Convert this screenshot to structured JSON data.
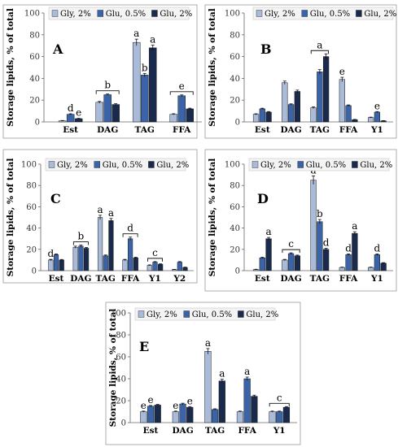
{
  "colors": {
    "gly": "#a9bbd9",
    "glu05": "#3b63a8",
    "glu2": "#1a2a4c"
  },
  "legend_labels": [
    "Gly, 2%",
    "Glu, 0.5%",
    "Glu, 2%"
  ],
  "ylabel": "Storage lipids, % of total",
  "chart_data": [
    {
      "type": "bar",
      "panel_label": "A",
      "categories": [
        "Est",
        "DAG",
        "TAG",
        "FFA"
      ],
      "series": [
        {
          "name": "Gly, 2%",
          "values": [
            1,
            18,
            73,
            7
          ],
          "errors": [
            0.3,
            0.8,
            3,
            0.5
          ]
        },
        {
          "name": "Glu, 0.5%",
          "values": [
            7,
            25,
            43,
            24
          ],
          "errors": [
            0.5,
            0.6,
            1.5,
            0.8
          ]
        },
        {
          "name": "Glu, 2%",
          "values": [
            3,
            16,
            68,
            12
          ],
          "errors": [
            0.3,
            0.7,
            2.5,
            0.6
          ]
        }
      ],
      "ylim": [
        0,
        100
      ],
      "yticks": [
        0,
        20,
        40,
        60,
        80,
        100
      ],
      "ylabel": "Storage lipids, % of total",
      "annotations": [
        {
          "text": "d",
          "category": "Est",
          "series": 1
        },
        {
          "text": "e",
          "category": "Est",
          "series": 2
        },
        {
          "text": "b",
          "category": "DAG",
          "bracket": true
        },
        {
          "text": "a",
          "category": "TAG",
          "series": 0
        },
        {
          "text": "b",
          "category": "TAG",
          "series": 1
        },
        {
          "text": "a",
          "category": "TAG",
          "series": 2
        },
        {
          "text": "e",
          "category": "FFA",
          "bracket": true
        }
      ]
    },
    {
      "type": "bar",
      "panel_label": "B",
      "categories": [
        "Est",
        "DAG",
        "TAG",
        "FFA",
        "Y1"
      ],
      "series": [
        {
          "name": "Gly, 2%",
          "values": [
            7,
            36,
            13,
            39,
            4
          ],
          "errors": [
            0.5,
            1.5,
            0.8,
            2,
            0.4
          ]
        },
        {
          "name": "Glu, 0.5%",
          "values": [
            12,
            16,
            46,
            15,
            9
          ],
          "errors": [
            0.6,
            0.6,
            2,
            0.6,
            0.5
          ]
        },
        {
          "name": "Glu, 2%",
          "values": [
            9,
            28,
            60,
            2,
            1
          ],
          "errors": [
            0.5,
            1.2,
            2.5,
            0.3,
            0.2
          ]
        }
      ],
      "ylim": [
        0,
        100
      ],
      "yticks": [
        0,
        20,
        40,
        60,
        80,
        100
      ],
      "ylabel": "Storage lipids, % of total",
      "annotations": [
        {
          "text": "a",
          "category": "TAG",
          "bracket": true
        },
        {
          "text": "e",
          "category": "FFA",
          "series": 0
        },
        {
          "text": "e",
          "category": "Y1",
          "series": 1
        }
      ]
    },
    {
      "type": "bar",
      "panel_label": "C",
      "categories": [
        "Est",
        "DAG",
        "TAG",
        "FFA",
        "Y1",
        "Y2"
      ],
      "series": [
        {
          "name": "Gly, 2%",
          "values": [
            10,
            22,
            50,
            10,
            5,
            1
          ],
          "errors": [
            0.6,
            1,
            2,
            0.6,
            0.4,
            0.2
          ]
        },
        {
          "name": "Glu, 0.5%",
          "values": [
            15,
            23,
            14,
            30,
            8,
            8
          ],
          "errors": [
            0.7,
            1,
            0.7,
            1.5,
            0.5,
            0.5
          ]
        },
        {
          "name": "Glu, 2%",
          "values": [
            10,
            21,
            47,
            12,
            6,
            3
          ],
          "errors": [
            0.5,
            0.8,
            2,
            0.6,
            0.4,
            0.3
          ]
        }
      ],
      "ylim": [
        0,
        100
      ],
      "yticks": [
        0,
        20,
        40,
        60,
        80,
        100
      ],
      "ylabel": "Storage lipids, % of total",
      "annotations": [
        {
          "text": "d",
          "category": "Est",
          "series": 0
        },
        {
          "text": "b",
          "category": "DAG",
          "bracket": true
        },
        {
          "text": "a",
          "category": "TAG",
          "series": 0
        },
        {
          "text": "a",
          "category": "TAG",
          "series": 2
        },
        {
          "text": "d",
          "category": "FFA",
          "bracket": true
        },
        {
          "text": "c",
          "category": "Y1",
          "bracket": true
        }
      ]
    },
    {
      "type": "bar",
      "panel_label": "D",
      "categories": [
        "Est",
        "DAG",
        "TAG",
        "FFA",
        "Y1"
      ],
      "series": [
        {
          "name": "Gly, 2%",
          "values": [
            1,
            10,
            85,
            3,
            3
          ],
          "errors": [
            0.3,
            0.6,
            4,
            0.3,
            0.3
          ]
        },
        {
          "name": "Glu, 0.5%",
          "values": [
            12,
            16,
            46,
            15,
            15
          ],
          "errors": [
            0.6,
            0.7,
            2,
            0.7,
            0.7
          ]
        },
        {
          "name": "Glu, 2%",
          "values": [
            30,
            14,
            20,
            35,
            7
          ],
          "errors": [
            1.2,
            0.6,
            1,
            1.5,
            0.5
          ]
        }
      ],
      "ylim": [
        0,
        100
      ],
      "yticks": [
        0,
        20,
        40,
        60,
        80,
        100
      ],
      "ylabel": "Storage lipids, % of total",
      "annotations": [
        {
          "text": "a",
          "category": "Est",
          "series": 2
        },
        {
          "text": "c",
          "category": "DAG",
          "bracket": true
        },
        {
          "text": "a",
          "category": "TAG",
          "series": 0
        },
        {
          "text": "b",
          "category": "TAG",
          "series": 1
        },
        {
          "text": "d",
          "category": "TAG",
          "series": 2
        },
        {
          "text": "d",
          "category": "FFA",
          "series": 1
        },
        {
          "text": "a",
          "category": "FFA",
          "series": 2
        },
        {
          "text": "d",
          "category": "Y1",
          "series": 1
        }
      ]
    },
    {
      "type": "bar",
      "panel_label": "E",
      "categories": [
        "Est",
        "DAG",
        "TAG",
        "FFA",
        "Y1"
      ],
      "series": [
        {
          "name": "Gly, 2%",
          "values": [
            10,
            10,
            65,
            10,
            10
          ],
          "errors": [
            0.5,
            0.5,
            2.5,
            0.5,
            0.5
          ]
        },
        {
          "name": "Glu, 0.5%",
          "values": [
            15,
            17,
            12,
            40,
            10
          ],
          "errors": [
            0.6,
            0.7,
            0.6,
            1.5,
            0.5
          ]
        },
        {
          "name": "Glu, 2%",
          "values": [
            16,
            14,
            38,
            24,
            14
          ],
          "errors": [
            0.6,
            0.6,
            1.5,
            1,
            0.6
          ]
        }
      ],
      "ylim": [
        0,
        100
      ],
      "yticks": [
        0,
        20,
        40,
        60,
        80,
        100
      ],
      "ylabel": "Storage lipids, % of total",
      "annotations": [
        {
          "text": "e",
          "category": "Est",
          "series": 0
        },
        {
          "text": "e",
          "category": "Est",
          "series": 1
        },
        {
          "text": "e",
          "category": "DAG",
          "series": 0
        },
        {
          "text": "e",
          "category": "DAG",
          "series": 2
        },
        {
          "text": "a",
          "category": "TAG",
          "series": 0
        },
        {
          "text": "a",
          "category": "TAG",
          "series": 2
        },
        {
          "text": "a",
          "category": "FFA",
          "series": 1
        },
        {
          "text": "c",
          "category": "Y1",
          "bracket": true
        }
      ]
    }
  ]
}
